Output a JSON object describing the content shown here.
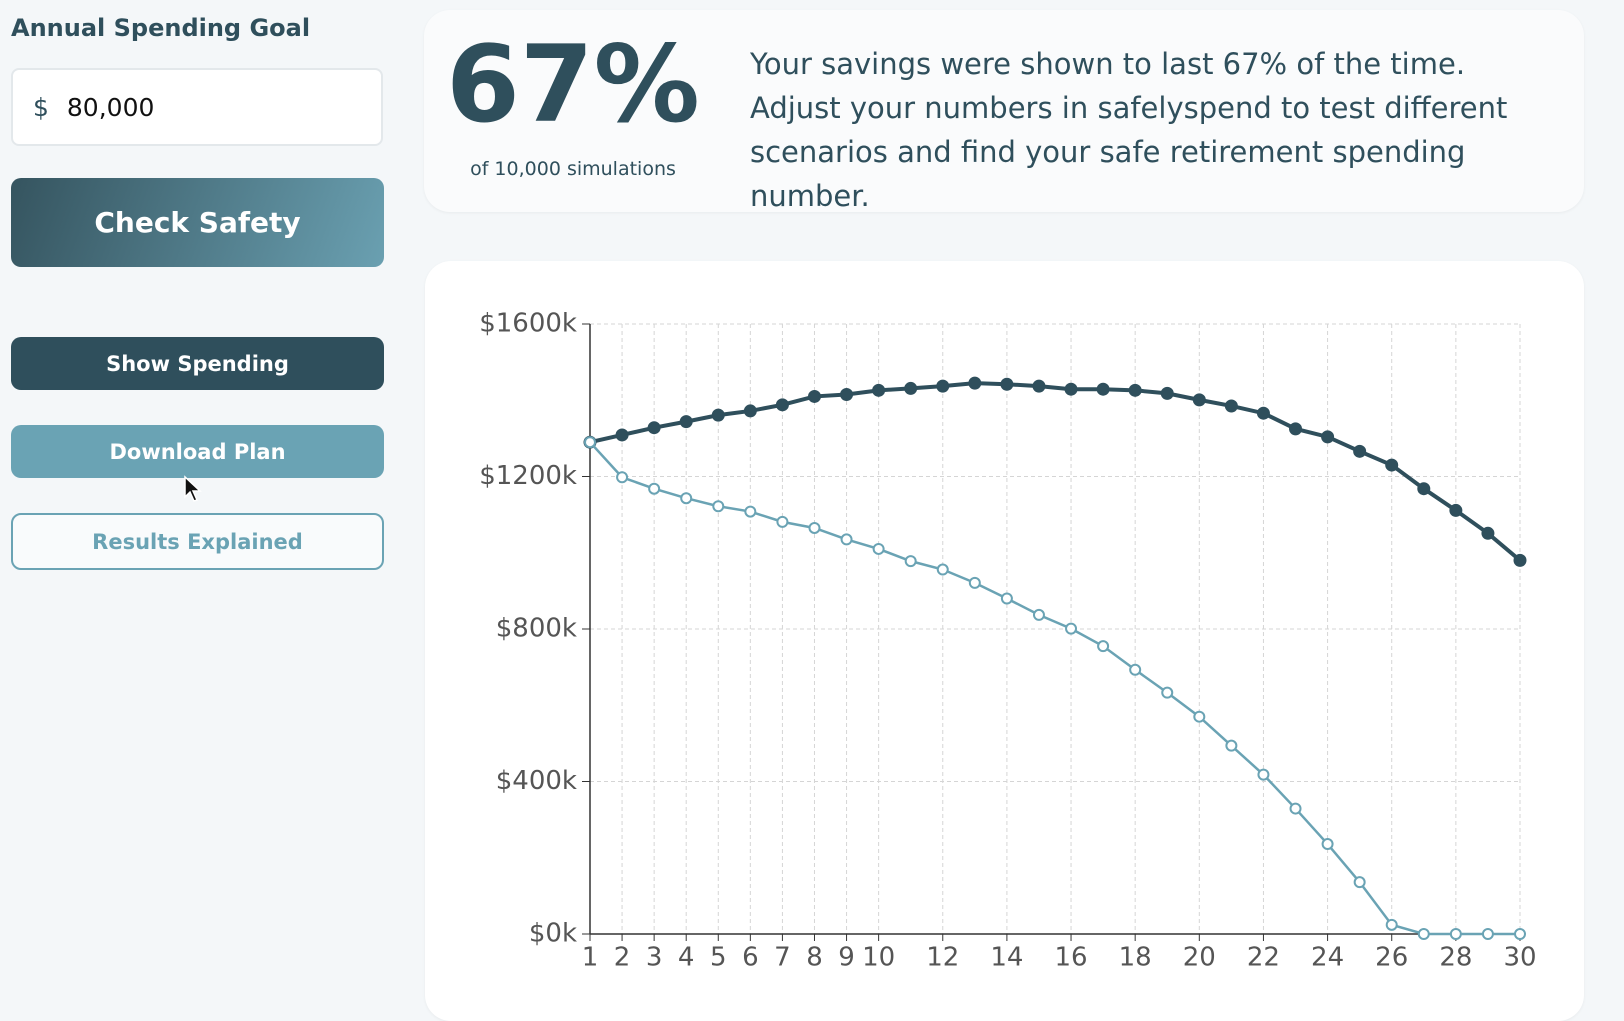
{
  "sidebar": {
    "goal_label": "Annual Spending Goal",
    "currency": "$",
    "goal_value": "80,000",
    "check_button": "Check Safety",
    "show_button": "Show Spending",
    "download_button": "Download Plan",
    "results_button": "Results Explained"
  },
  "stat": {
    "percent": "67%",
    "caption": "of 10,000 simulations",
    "description": "Your savings were shown to last 67% of the time. Adjust your numbers in safelyspend to test different scenarios and find your safe retirement spending number."
  },
  "chart_data": {
    "type": "line",
    "x": [
      1,
      2,
      3,
      4,
      5,
      6,
      7,
      8,
      9,
      10,
      11,
      12,
      13,
      14,
      15,
      16,
      17,
      18,
      19,
      20,
      21,
      22,
      23,
      24,
      25,
      26,
      27,
      28,
      29,
      30
    ],
    "xlim": [
      1,
      30
    ],
    "xticks": [
      1,
      2,
      3,
      4,
      5,
      6,
      7,
      8,
      9,
      10,
      12,
      14,
      16,
      18,
      20,
      22,
      24,
      26,
      28,
      30
    ],
    "ylim": [
      0,
      1600
    ],
    "yticks": [
      {
        "value": 0,
        "label": "$0k"
      },
      {
        "value": 400,
        "label": "$400k"
      },
      {
        "value": 800,
        "label": "$800k"
      },
      {
        "value": 1200,
        "label": "$1200k"
      },
      {
        "value": 1600,
        "label": "$1600k"
      }
    ],
    "grid": true,
    "series": [
      {
        "color": "#2f4f5c",
        "filled_markers": true,
        "values": [
          1290,
          1309,
          1328,
          1344,
          1361,
          1372,
          1388,
          1410,
          1415,
          1426,
          1431,
          1437,
          1445,
          1442,
          1437,
          1429,
          1429,
          1426,
          1418,
          1401,
          1385,
          1366,
          1325,
          1304,
          1266,
          1230,
          1168,
          1111,
          1051,
          980
        ]
      },
      {
        "color": "#6aa3b4",
        "filled_markers": false,
        "values": [
          1290,
          1198,
          1168,
          1143,
          1122,
          1108,
          1081,
          1065,
          1035,
          1010,
          978,
          956,
          921,
          880,
          837,
          801,
          755,
          693,
          633,
          570,
          494,
          418,
          329,
          236,
          136,
          24,
          0,
          0,
          0,
          0
        ]
      }
    ]
  }
}
